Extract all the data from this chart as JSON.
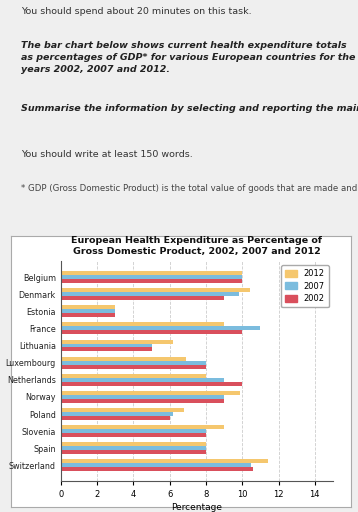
{
  "title": "European Health Expenditure as Percentage of\nGross Domestic Product, 2002, 2007 and 2012",
  "countries": [
    "Belgium",
    "Denmark",
    "Estonia",
    "France",
    "Lithuania",
    "Luxembourg",
    "Netherlands",
    "Norway",
    "Poland",
    "Slovenia",
    "Spain",
    "Switzerland"
  ],
  "years": [
    "2012",
    "2007",
    "2002"
  ],
  "values": {
    "2012": [
      10.0,
      10.4,
      3.0,
      9.0,
      6.2,
      6.9,
      8.0,
      9.9,
      6.8,
      9.0,
      8.0,
      11.4
    ],
    "2007": [
      10.0,
      9.8,
      3.0,
      11.0,
      5.0,
      8.0,
      9.0,
      9.0,
      6.2,
      8.0,
      8.0,
      10.5
    ],
    "2002": [
      10.0,
      9.0,
      3.0,
      10.0,
      5.0,
      8.0,
      10.0,
      9.0,
      6.0,
      8.0,
      8.0,
      10.6
    ]
  },
  "colors": {
    "2012": "#F5C76E",
    "2007": "#7BBCDE",
    "2002": "#D94F5C"
  },
  "xlabel": "Percentage",
  "xlim": [
    0,
    15
  ],
  "xticks": [
    0,
    2,
    4,
    6,
    8,
    10,
    12,
    14
  ],
  "page_bg": "#EFEFEF",
  "chart_bg": "#FFFFFF",
  "grid_color": "#CCCCCC",
  "header_line1": "You should spend about 20 minutes on this task.",
  "header_line2_bold": "The bar chart below shows current health expenditure totals as percentages of GDP* for various European countries for the years 2002, 2007 and 2012.",
  "header_line3_bold": "Summarise the information by selecting and reporting the main features, and make comparisons where relevant.",
  "header_line4": "You should write at least 150 words.",
  "header_line5": "* GDP (Gross Domestic Product) is the total value of goods that are made and services that are provided in a country."
}
